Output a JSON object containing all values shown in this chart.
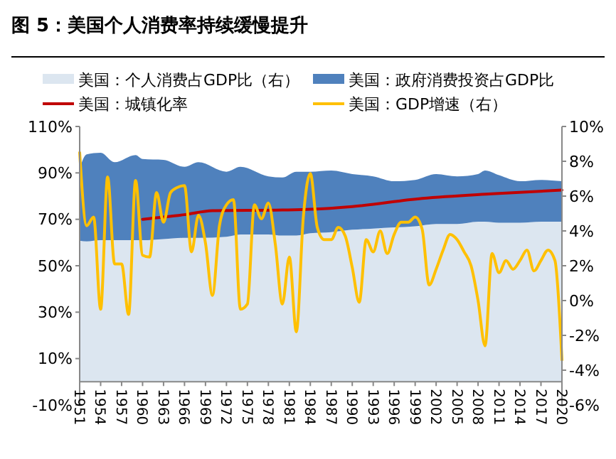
{
  "chart_data": {
    "type": "area",
    "title": "图 5：美国个人消费率持续缓慢提升",
    "stacked": true,
    "legend": "top",
    "x": [
      1951,
      1952,
      1954,
      1956,
      1959,
      1960,
      1963,
      1966,
      1968,
      1972,
      1974,
      1978,
      1980,
      1982,
      1984,
      1987,
      1990,
      1993,
      1996,
      1999,
      2002,
      2005,
      2008,
      2009,
      2011,
      2014,
      2017,
      2020
    ],
    "series": [
      {
        "name": "美国：个人消费占GDP比（右）",
        "color": "#dce6f0",
        "values": [
          60.8,
          60.5,
          61,
          61,
          61,
          61,
          61.5,
          62,
          62,
          62.5,
          63.5,
          63.5,
          63,
          63,
          64,
          64.5,
          65.5,
          66,
          66.5,
          67,
          68,
          68,
          69,
          69,
          68.5,
          68.5,
          69,
          69
        ]
      },
      {
        "name": "美国：政府消费投资占GDP比",
        "color": "#4f81bd",
        "values": [
          31.2,
          37.5,
          37.7,
          33.6,
          36.7,
          35,
          34.1,
          30.6,
          32.6,
          28,
          29.1,
          25,
          25,
          27.5,
          26.5,
          26.5,
          24,
          22.5,
          19.9,
          20,
          21.5,
          20.5,
          20.5,
          22,
          20.5,
          17.9,
          18,
          17.4
        ]
      },
      {
        "name": "美国：城镇化率",
        "type": "line",
        "color": "#c00000",
        "x": [
          1960,
          1966,
          1970,
          1980,
          1984,
          1990,
          2000,
          2010,
          2020
        ],
        "values": [
          70,
          72,
          73.7,
          74,
          74.3,
          75.5,
          79,
          81,
          82.6
        ]
      },
      {
        "name": "美国：GDP增速（右）",
        "type": "line",
        "axis": "y2",
        "color": "#ffc000",
        "x": [
          1951,
          1952,
          1953,
          1954,
          1955,
          1956,
          1957,
          1958,
          1959,
          1960,
          1961,
          1962,
          1963,
          1964,
          1965,
          1966,
          1967,
          1968,
          1969,
          1970,
          1971,
          1972,
          1973,
          1974,
          1975,
          1976,
          1977,
          1978,
          1979,
          1980,
          1981,
          1982,
          1983,
          1984,
          1985,
          1986,
          1987,
          1988,
          1989,
          1990,
          1991,
          1992,
          1993,
          1994,
          1995,
          1996,
          1997,
          1998,
          1999,
          2000,
          2001,
          2002,
          2003,
          2004,
          2005,
          2006,
          2007,
          2008,
          2009,
          2010,
          2011,
          2012,
          2013,
          2014,
          2015,
          2016,
          2017,
          2018,
          2019,
          2020
        ],
        "values": [
          8.5,
          4.3,
          4.8,
          -0.5,
          7.1,
          2.1,
          2.1,
          -0.8,
          6.9,
          2.6,
          2.5,
          6.2,
          4.5,
          6.2,
          6.5,
          6.6,
          2.8,
          4.9,
          3.3,
          0.3,
          4.3,
          5.5,
          5.8,
          -0.5,
          -0.2,
          5.5,
          4.7,
          5.6,
          3.2,
          -0.2,
          2.5,
          -1.8,
          4.8,
          7.3,
          4.2,
          3.5,
          3.5,
          4.2,
          3.7,
          1.9,
          -0.1,
          3.5,
          2.8,
          4.0,
          2.7,
          3.8,
          4.5,
          4.5,
          4.8,
          4.1,
          0.9,
          1.8,
          2.9,
          3.8,
          3.5,
          2.8,
          2.0,
          0.0,
          -2.6,
          2.7,
          1.6,
          2.3,
          1.8,
          2.3,
          2.9,
          1.7,
          2.3,
          2.9,
          2.3,
          -3.4
        ]
      }
    ],
    "xlim": [
      1951,
      2020
    ],
    "xticks": [
      1951,
      1954,
      1957,
      1960,
      1963,
      1966,
      1969,
      1972,
      1975,
      1978,
      1981,
      1984,
      1987,
      1990,
      1993,
      1996,
      1999,
      2002,
      2005,
      2008,
      2011,
      2014,
      2017,
      2020
    ],
    "ylim": [
      -10,
      110
    ],
    "yticks": [
      {
        "value": -10,
        "label": "-10%"
      },
      {
        "value": 10,
        "label": "10%"
      },
      {
        "value": 30,
        "label": "30%"
      },
      {
        "value": 50,
        "label": "50%"
      },
      {
        "value": 70,
        "label": "70%"
      },
      {
        "value": 90,
        "label": "90%"
      },
      {
        "value": 110,
        "label": "110%"
      }
    ],
    "y2lim": [
      -6,
      10
    ],
    "y2ticks": [
      {
        "value": -6,
        "label": "-6%"
      },
      {
        "value": -4,
        "label": "-4%"
      },
      {
        "value": -2,
        "label": "-2%"
      },
      {
        "value": 0,
        "label": "0%"
      },
      {
        "value": 2,
        "label": "2%"
      },
      {
        "value": 4,
        "label": "4%"
      },
      {
        "value": 6,
        "label": "6%"
      },
      {
        "value": 8,
        "label": "8%"
      },
      {
        "value": 10,
        "label": "10%"
      }
    ],
    "grid": false
  }
}
